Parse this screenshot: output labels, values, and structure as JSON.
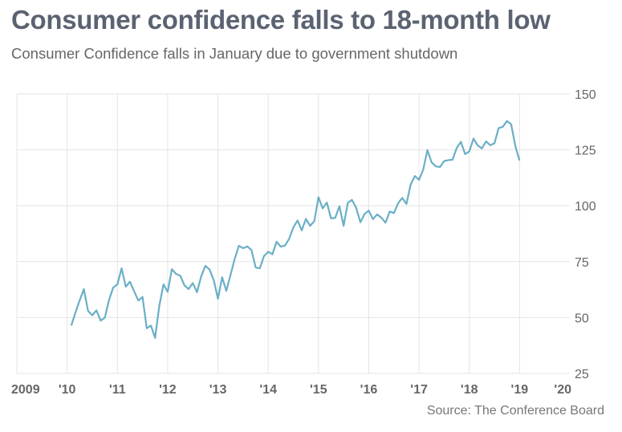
{
  "header": {
    "title": "Consumer confidence falls to 18-month low",
    "subtitle": "Consumer Confidence falls in January due to government shutdown"
  },
  "footer": {
    "source": "Source: The Conference Board"
  },
  "chart_data": {
    "type": "line",
    "title": "Consumer confidence falls to 18-month low",
    "subtitle": "Consumer Confidence falls in January due to government shutdown",
    "xlabel": "",
    "ylabel": "",
    "xlim": [
      2009,
      2020
    ],
    "ylim": [
      25,
      150
    ],
    "x_ticks": [
      {
        "value": 2009,
        "label": "2009"
      },
      {
        "value": 2010,
        "label": "'10"
      },
      {
        "value": 2011,
        "label": "'11"
      },
      {
        "value": 2012,
        "label": "'12"
      },
      {
        "value": 2013,
        "label": "'13"
      },
      {
        "value": 2014,
        "label": "'14"
      },
      {
        "value": 2015,
        "label": "'15"
      },
      {
        "value": 2016,
        "label": "'16"
      },
      {
        "value": 2017,
        "label": "'17"
      },
      {
        "value": 2018,
        "label": "'18"
      },
      {
        "value": 2019,
        "label": "'19"
      },
      {
        "value": 2020,
        "label": "'20"
      }
    ],
    "y_ticks": [
      25,
      50,
      75,
      100,
      125,
      150
    ],
    "y_axis_position": "right",
    "grid": true,
    "line_color": "#6aafc6",
    "series": [
      {
        "start": "2010-02",
        "frequency": "monthly",
        "values": [
          46.4,
          52.3,
          57.7,
          62.7,
          52.9,
          51.0,
          53.2,
          48.6,
          49.9,
          57.8,
          63.4,
          64.8,
          72.0,
          63.8,
          66.0,
          61.7,
          57.6,
          59.2,
          45.2,
          46.4,
          40.9,
          55.2,
          64.8,
          61.5,
          71.6,
          69.5,
          68.7,
          64.4,
          62.7,
          65.4,
          61.3,
          68.4,
          73.1,
          71.5,
          66.7,
          58.4,
          68.0,
          61.9,
          69.0,
          76.2,
          82.1,
          81.0,
          81.8,
          80.2,
          72.4,
          72.0,
          77.5,
          79.4,
          78.3,
          83.9,
          81.7,
          82.2,
          85.2,
          90.3,
          93.4,
          89.0,
          94.1,
          91.0,
          93.1,
          103.8,
          98.8,
          101.4,
          94.3,
          94.6,
          99.8,
          91.0,
          101.3,
          102.6,
          99.1,
          92.6,
          96.3,
          97.8,
          94.0,
          96.1,
          94.7,
          92.4,
          97.4,
          96.7,
          101.1,
          103.5,
          100.8,
          109.4,
          113.3,
          111.6,
          116.1,
          124.9,
          119.4,
          117.6,
          117.3,
          120.0,
          120.4,
          120.6,
          125.9,
          128.6,
          123.1,
          124.3,
          130.0,
          127.0,
          125.6,
          128.8,
          127.1,
          127.9,
          134.7,
          135.3,
          137.9,
          136.4,
          126.6,
          120.2
        ]
      }
    ]
  }
}
